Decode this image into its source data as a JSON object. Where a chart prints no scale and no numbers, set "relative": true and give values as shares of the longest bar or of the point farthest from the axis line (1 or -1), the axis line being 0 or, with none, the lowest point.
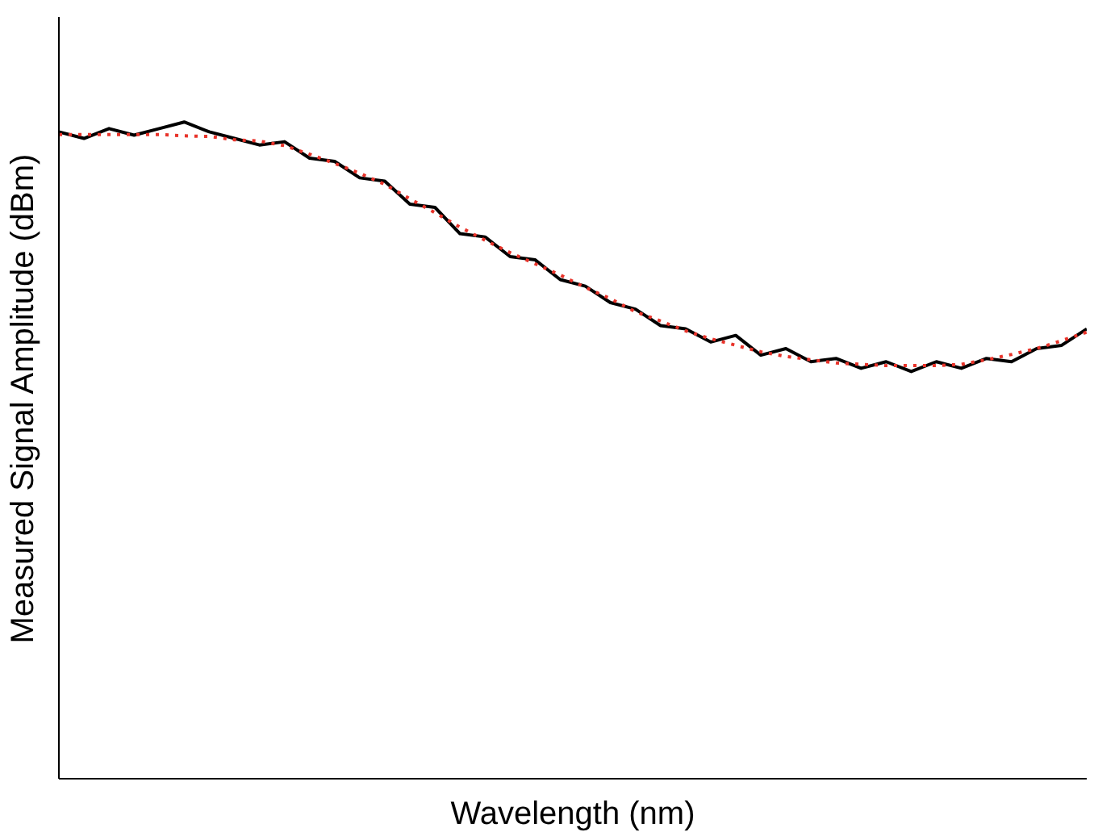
{
  "chart_data": {
    "type": "line",
    "relative": true,
    "xlabel": "Wavelength (nm)",
    "ylabel": "Measured Signal Amplitude (dBm)",
    "categories": [
      null,
      null,
      null,
      null,
      null,
      null,
      null,
      null,
      null,
      null,
      null,
      null,
      null,
      null,
      null,
      null,
      null,
      null,
      null,
      null,
      null,
      null,
      null,
      null,
      null,
      null,
      null,
      null,
      null,
      null,
      null,
      null,
      null,
      null,
      null,
      null,
      null,
      null,
      null,
      null,
      null,
      null
    ],
    "series": [
      {
        "color": "#000000",
        "line_style": "solid",
        "values": [
          0.985,
          0.975,
          0.99,
          0.98,
          0.99,
          1.0,
          0.985,
          0.975,
          0.965,
          0.97,
          0.945,
          0.94,
          0.915,
          0.91,
          0.875,
          0.87,
          0.83,
          0.825,
          0.795,
          0.79,
          0.76,
          0.75,
          0.725,
          0.715,
          0.69,
          0.685,
          0.665,
          0.675,
          0.645,
          0.655,
          0.635,
          0.64,
          0.625,
          0.635,
          0.62,
          0.635,
          0.625,
          0.64,
          0.635,
          0.655,
          0.66,
          0.685
        ]
      },
      {
        "color": "#e8332a",
        "line_style": "dotted",
        "values": [
          0.981,
          0.981,
          0.981,
          0.981,
          0.981,
          0.979,
          0.978,
          0.973,
          0.971,
          0.964,
          0.951,
          0.937,
          0.922,
          0.905,
          0.883,
          0.862,
          0.84,
          0.82,
          0.801,
          0.784,
          0.767,
          0.748,
          0.731,
          0.711,
          0.697,
          0.682,
          0.67,
          0.66,
          0.65,
          0.643,
          0.638,
          0.633,
          0.631,
          0.629,
          0.629,
          0.629,
          0.631,
          0.638,
          0.646,
          0.655,
          0.667,
          0.68
        ]
      }
    ]
  }
}
